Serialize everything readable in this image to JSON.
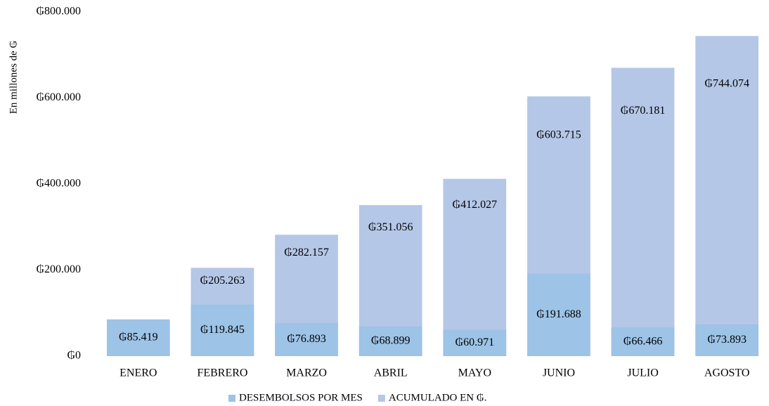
{
  "chart_data": {
    "type": "bar",
    "y_axis_label": "En millones de ₲",
    "categories": [
      "ENERO",
      "FEBRERO",
      "MARZO",
      "ABRIL",
      "MAYO",
      "JUNIO",
      "JULIO",
      "AGOSTO"
    ],
    "series": [
      {
        "name": "DESEMBOLSOS POR MES",
        "color": "#9dc3e6",
        "values": [
          85419,
          119845,
          76893,
          68899,
          60971,
          191688,
          66466,
          73893
        ],
        "value_labels": [
          "₲85.419",
          "₲119.845",
          "₲76.893",
          "₲68.899",
          "₲60.971",
          "₲191.688",
          "₲66.466",
          "₲73.893"
        ]
      },
      {
        "name": "ACUMULADO EN ₲.",
        "color": "#b4c7e7",
        "values": [
          null,
          205263,
          282157,
          351056,
          412027,
          603715,
          670181,
          744074
        ],
        "value_labels": [
          null,
          "₲205.263",
          "₲282.157",
          "₲351.056",
          "₲412.027",
          "₲603.715",
          "₲670.181",
          "₲744.074"
        ]
      }
    ],
    "ylim": [
      0,
      800000
    ],
    "yticks": [
      {
        "value": 0,
        "label": "₲0"
      },
      {
        "value": 200000,
        "label": "₲200.000"
      },
      {
        "value": 400000,
        "label": "₲400.000"
      },
      {
        "value": 600000,
        "label": "₲600.000"
      },
      {
        "value": 800000,
        "label": "₲800.000"
      }
    ],
    "grid": false,
    "legend": "bottom"
  }
}
